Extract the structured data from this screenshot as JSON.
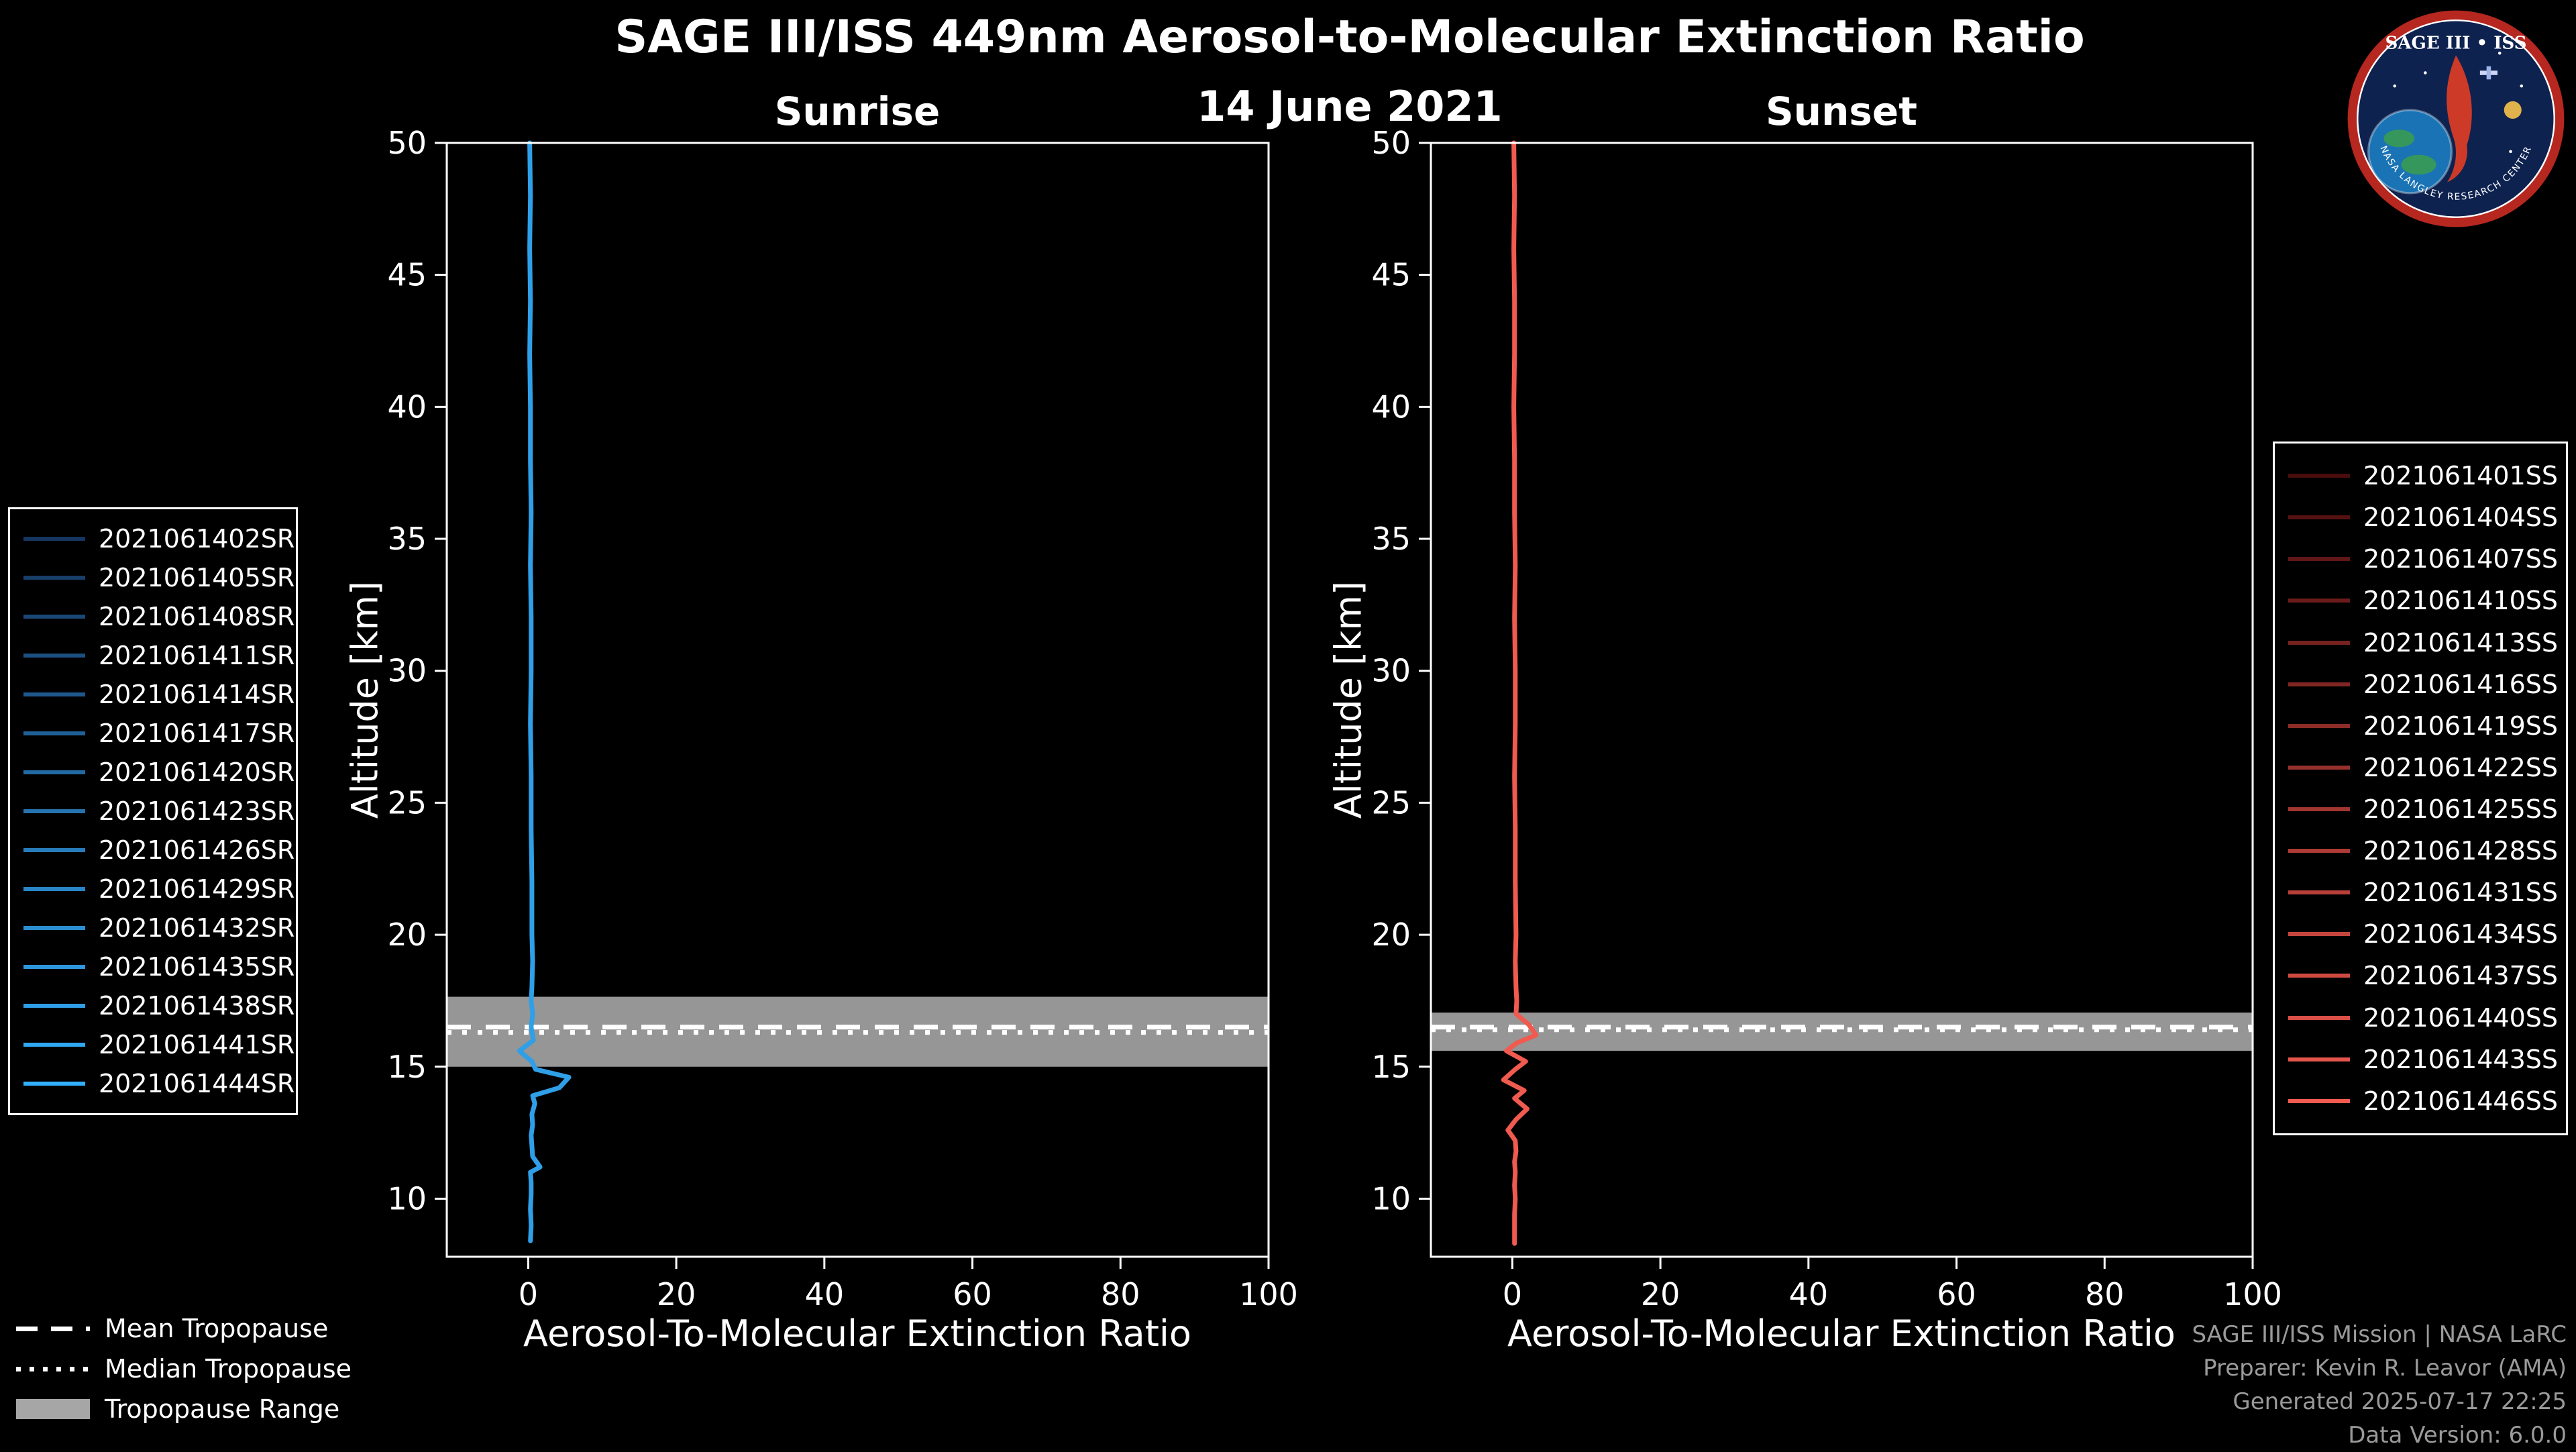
{
  "page": {
    "title": "SAGE III/ISS 449nm Aerosol-to-Molecular Extinction Ratio",
    "date": "14 June 2021"
  },
  "logo": {
    "text": "SAGE III • ISS",
    "ring_text": "NASA LANGLEY RESEARCH CENTER"
  },
  "tropopause_legend": {
    "mean_label": "Mean Tropopause",
    "median_label": "Median Tropopause",
    "range_label": "Tropopause Range"
  },
  "footer": {
    "line1": "SAGE III/ISS Mission | NASA LaRC",
    "line2": "Preparer: Kevin R. Leavor (AMA)",
    "line3": "Generated 2025-07-17 22:25",
    "line4": "Data Version: 6.0.0"
  },
  "colors": {
    "background": "#000000",
    "axis": "#ffffff",
    "tropopause_band": "#a6a6a6",
    "footer_text": "#9a9a9a",
    "sunrise_accent": "#2f9fe8",
    "sunset_accent": "#f05a4f"
  },
  "chart_data": [
    {
      "type": "line",
      "title": "Sunrise",
      "xlabel": "Aerosol-To-Molecular Extinction Ratio",
      "ylabel": "Altitude [km]",
      "xlim": [
        -11,
        100
      ],
      "ylim": [
        7.8,
        50
      ],
      "xticks": [
        0,
        20,
        40,
        60,
        80,
        100
      ],
      "yticks": [
        10,
        15,
        20,
        25,
        30,
        35,
        40,
        45,
        50
      ],
      "line_color": "#2f9fe8",
      "tropopause": {
        "range_km": [
          15.0,
          17.65
        ],
        "mean_km": 16.5,
        "median_km": 16.3
      },
      "profile": {
        "altitude_km": [
          50,
          48,
          46,
          44,
          42,
          40,
          38,
          36,
          34,
          32,
          30,
          28,
          26,
          24,
          22,
          20,
          19,
          18,
          17.5,
          17,
          16.5,
          16,
          15.6,
          15.2,
          14.9,
          14.6,
          14.2,
          13.9,
          13.6,
          13.2,
          12.8,
          12.4,
          12.0,
          11.6,
          11.2,
          11.0,
          10.6,
          10.2,
          9.6,
          9.0,
          8.4
        ],
        "ratio": [
          0.2,
          0.3,
          0.2,
          0.3,
          0.2,
          0.3,
          0.3,
          0.4,
          0.3,
          0.4,
          0.4,
          0.3,
          0.4,
          0.4,
          0.5,
          0.5,
          0.6,
          0.5,
          0.4,
          0.6,
          0.4,
          0.7,
          -1.2,
          0.5,
          1.0,
          5.5,
          4.2,
          0.6,
          0.9,
          0.5,
          0.6,
          0.4,
          0.5,
          0.6,
          1.6,
          0.3,
          0.4,
          0.4,
          0.3,
          0.4,
          0.3
        ]
      },
      "series": [
        {
          "name": "2021061402SR",
          "color": "#16355F"
        },
        {
          "name": "2021061405SR",
          "color": "#183E6A"
        },
        {
          "name": "2021061408SR",
          "color": "#1A4776"
        },
        {
          "name": "2021061411SR",
          "color": "#1C5081"
        },
        {
          "name": "2021061414SR",
          "color": "#1E588D"
        },
        {
          "name": "2021061417SR",
          "color": "#206198"
        },
        {
          "name": "2021061420SR",
          "color": "#226AA4"
        },
        {
          "name": "2021061423SR",
          "color": "#2573AF"
        },
        {
          "name": "2021061426SR",
          "color": "#277CBA"
        },
        {
          "name": "2021061429SR",
          "color": "#2985C6"
        },
        {
          "name": "2021061432SR",
          "color": "#2B8ED1"
        },
        {
          "name": "2021061435SR",
          "color": "#2D96DD"
        },
        {
          "name": "2021061438SR",
          "color": "#2F9FE8"
        },
        {
          "name": "2021061441SR",
          "color": "#31A8F4"
        },
        {
          "name": "2021061444SR",
          "color": "#33B1FF"
        }
      ]
    },
    {
      "type": "line",
      "title": "Sunset",
      "xlabel": "Aerosol-To-Molecular Extinction Ratio",
      "ylabel": "Altitude [km]",
      "xlim": [
        -11,
        100
      ],
      "ylim": [
        7.8,
        50
      ],
      "xticks": [
        0,
        20,
        40,
        60,
        80,
        100
      ],
      "yticks": [
        10,
        15,
        20,
        25,
        30,
        35,
        40,
        45,
        50
      ],
      "line_color": "#f05a4f",
      "tropopause": {
        "range_km": [
          15.6,
          17.05
        ],
        "mean_km": 16.5,
        "median_km": 16.4
      },
      "profile": {
        "altitude_km": [
          50,
          48,
          46,
          44,
          42,
          40,
          38,
          36,
          34,
          32,
          30,
          28,
          26,
          24,
          22,
          20,
          19,
          18,
          17.5,
          17,
          16.6,
          16.2,
          15.9,
          15.6,
          15.2,
          14.9,
          14.5,
          14.1,
          13.8,
          13.4,
          13.0,
          12.6,
          12.2,
          11.8,
          11.4,
          11.0,
          10.5,
          10.0,
          9.4,
          8.8,
          8.3
        ],
        "ratio": [
          0.2,
          0.3,
          0.2,
          0.3,
          0.3,
          0.2,
          0.3,
          0.3,
          0.4,
          0.3,
          0.4,
          0.4,
          0.3,
          0.4,
          0.4,
          0.5,
          0.4,
          0.5,
          0.6,
          0.5,
          2.2,
          3.2,
          0.6,
          -0.8,
          1.8,
          0.4,
          -1.2,
          1.6,
          0.3,
          2.0,
          0.5,
          -0.6,
          0.4,
          0.5,
          0.3,
          0.4,
          0.3,
          0.4,
          0.3,
          0.3,
          0.3
        ]
      },
      "series": [
        {
          "name": "2021061401SS",
          "color": "#4A0D0D"
        },
        {
          "name": "2021061404SS",
          "color": "#551211"
        },
        {
          "name": "2021061407SS",
          "color": "#601716"
        },
        {
          "name": "2021061410SS",
          "color": "#6B1C1A"
        },
        {
          "name": "2021061413SS",
          "color": "#76221F"
        },
        {
          "name": "2021061416SS",
          "color": "#812723"
        },
        {
          "name": "2021061419SS",
          "color": "#8C2C27"
        },
        {
          "name": "2021061422SS",
          "color": "#98312C"
        },
        {
          "name": "2021061425SS",
          "color": "#A33630"
        },
        {
          "name": "2021061428SS",
          "color": "#AE3B35"
        },
        {
          "name": "2021061431SS",
          "color": "#B94039"
        },
        {
          "name": "2021061434SS",
          "color": "#C4453D"
        },
        {
          "name": "2021061437SS",
          "color": "#CF4B42"
        },
        {
          "name": "2021061440SS",
          "color": "#DA5046"
        },
        {
          "name": "2021061443SS",
          "color": "#E5554B"
        },
        {
          "name": "2021061446SS",
          "color": "#F05A4F"
        }
      ]
    }
  ]
}
